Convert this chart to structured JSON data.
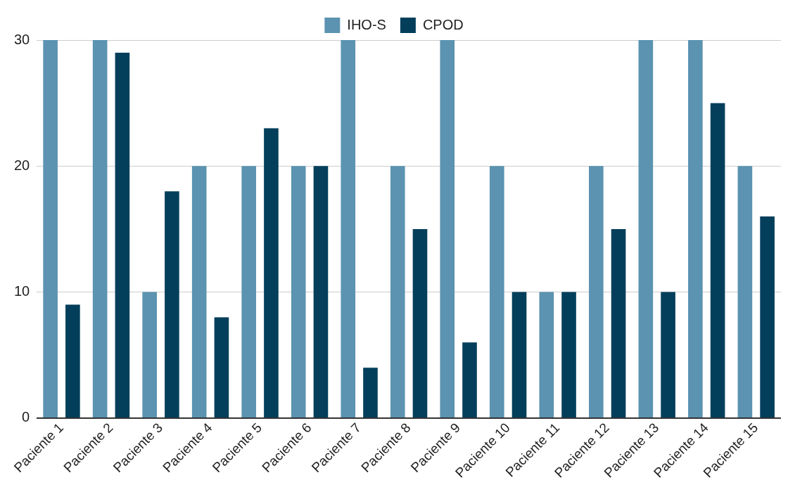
{
  "chart_data": {
    "type": "bar",
    "categories": [
      "Paciente 1",
      "Paciente 2",
      "Paciente 3",
      "Paciente 4",
      "Paciente 5",
      "Paciente 6",
      "Paciente 7",
      "Paciente 8",
      "Paciente 9",
      "Paciente 10",
      "Paciente 11",
      "Paciente 12",
      "Paciente 13",
      "Paciente 14",
      "Paciente 15"
    ],
    "series": [
      {
        "name": "IHO-S",
        "color": "#5b93b0",
        "values": [
          30,
          30,
          10,
          20,
          20,
          20,
          30,
          20,
          30,
          20,
          10,
          20,
          30,
          30,
          20
        ]
      },
      {
        "name": "CPOD",
        "color": "#033f5b",
        "values": [
          9,
          29,
          18,
          8,
          23,
          20,
          4,
          15,
          6,
          10,
          10,
          15,
          10,
          25,
          16
        ]
      }
    ],
    "ylim": [
      0,
      30
    ],
    "yticks": [
      0,
      10,
      20,
      30
    ],
    "grid": "y",
    "legend": "top"
  }
}
